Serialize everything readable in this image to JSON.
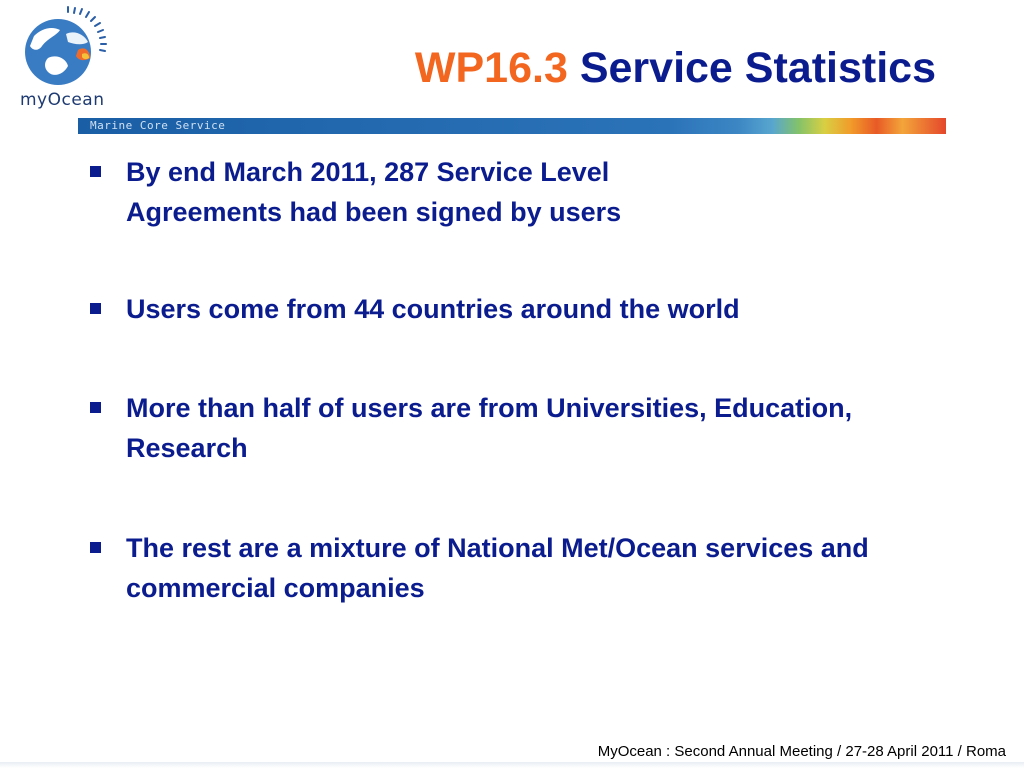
{
  "header": {
    "logo_name": "myOcean-logo",
    "logo_text": "myOcean",
    "title_code": "WP16.3",
    "title_text": "Service Statistics",
    "banner_text": "Marine Core Service"
  },
  "bullets": [
    {
      "text": "By end March 2011, 287 Service Level Agreements had been signed by users"
    },
    {
      "text": "Users come from 44 countries around the world"
    },
    {
      "text": "More than half of users are from Universities, Education, Research"
    },
    {
      "text": "The rest are a mixture of National Met/Ocean services and commercial companies"
    }
  ],
  "footer": {
    "text": "MyOcean : Second Annual Meeting / 27-28 April 2011 / Roma"
  },
  "colors": {
    "title_blue": "#0b1c8e",
    "title_orange": "#f2661f",
    "banner_blue": "#1a5fa6"
  }
}
